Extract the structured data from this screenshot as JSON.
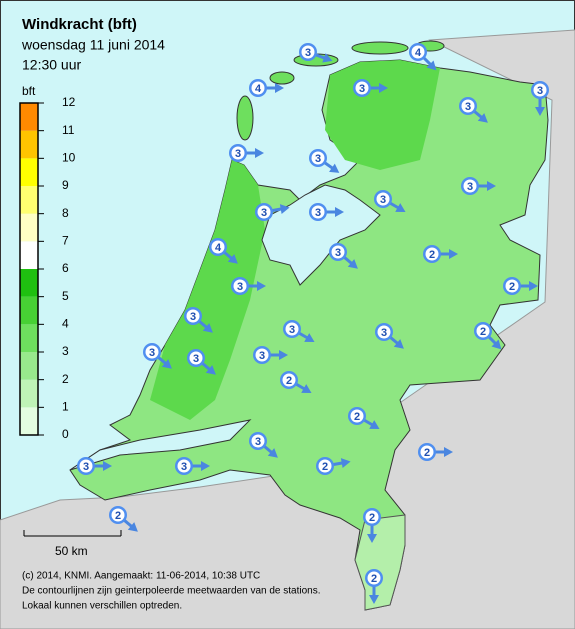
{
  "header": {
    "title": "Windkracht (bft)",
    "date": "woensdag 11 juni 2014",
    "time": "12:30 uur"
  },
  "legend": {
    "unit": "bft",
    "ticks": [
      0,
      1,
      2,
      3,
      4,
      5,
      6,
      7,
      8,
      9,
      10,
      11,
      12
    ],
    "colors": [
      "#e4fde0",
      "#bff3b6",
      "#98e98c",
      "#6edf5e",
      "#47d034",
      "#1fc010",
      "#ffffff",
      "#ffffc4",
      "#ffff70",
      "#ffff00",
      "#ffc400",
      "#ff8a00"
    ]
  },
  "scale_bar": "50 km",
  "footer": [
    "(c) 2014, KNMI. Aangemaakt: 11-06-2014, 10:38 UTC",
    "De contourlijnen zijn geinterpoleerde meetwaarden van de stations.",
    "Lokaal kunnen verschillen optreden."
  ],
  "station_values": [
    3,
    4,
    4,
    3,
    3,
    3,
    3,
    3,
    3,
    3,
    3,
    3,
    4,
    3,
    2,
    3,
    2,
    3,
    3,
    3,
    2,
    3,
    3,
    3,
    2,
    2,
    3,
    2,
    3,
    3,
    2,
    2,
    2,
    2
  ]
}
